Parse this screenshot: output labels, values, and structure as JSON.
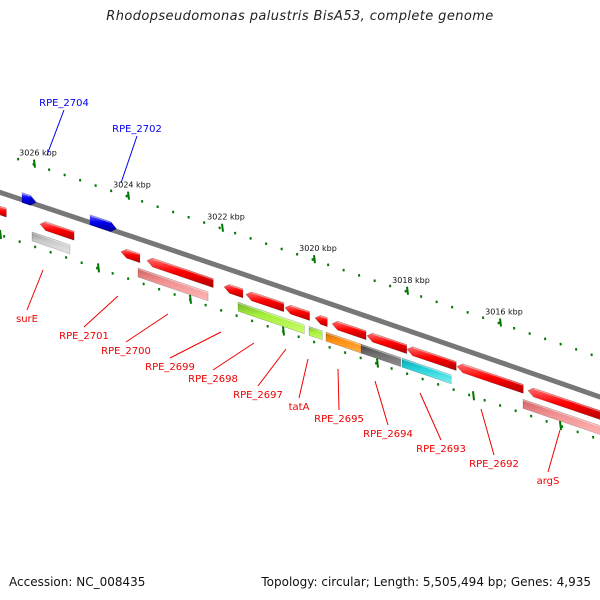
{
  "title": "Rhodopseudomonas palustris BisA53, complete genome",
  "footer": {
    "accession": "Accession: NC_008435",
    "topology": "Topology: circular; Length: 5,505,494 bp; Genes: 4,935"
  },
  "ruler": {
    "kbp_labels": [
      "3026 kbp",
      "3024 kbp",
      "3022 kbp",
      "3020 kbp",
      "3018 kbp",
      "3016 kbp"
    ]
  },
  "colors": {
    "forward_gene": "#0000ee",
    "reverse_gene": "#ee0000",
    "backbone": "#777777",
    "tick": "#007700"
  },
  "gene_labels": {
    "forward": [
      "RPE_2704",
      "RPE_2702"
    ],
    "reverse": [
      "surE",
      "RPE_2701",
      "RPE_2700",
      "RPE_2699",
      "RPE_2698",
      "RPE_2697",
      "tatA",
      "RPE_2695",
      "RPE_2694",
      "RPE_2693",
      "RPE_2692",
      "argS"
    ]
  }
}
